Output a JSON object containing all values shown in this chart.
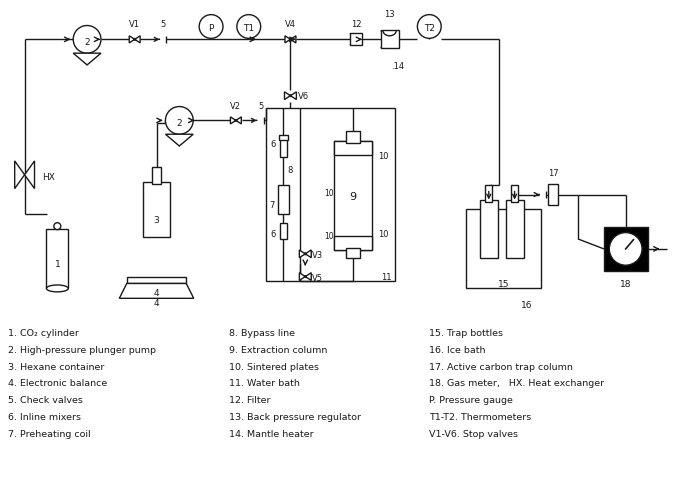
{
  "legend_lines": [
    "1. CO₂ cylinder",
    "2. High-pressure plunger pump",
    "3. Hexane container",
    "4. Electronic balance",
    "5. Check valves",
    "6. Inline mixers",
    "7. Preheating coil",
    "8. Bypass line",
    "9. Extraction column",
    "10. Sintered plates",
    "11. Water bath",
    "12. Filter",
    "13. Back pressure regulator",
    "14. Mantle heater",
    "15. Trap bottles",
    "16. Ice bath",
    "17. Active carbon trap column",
    "18. Gas meter,   HX. Heat exchanger",
    "P. Pressure gauge",
    "T1-T2. Thermometers",
    "V1-V6. Stop valves"
  ],
  "bg_color": "#ffffff",
  "line_color": "#1a1a1a",
  "fig_width": 6.85,
  "fig_height": 4.81
}
